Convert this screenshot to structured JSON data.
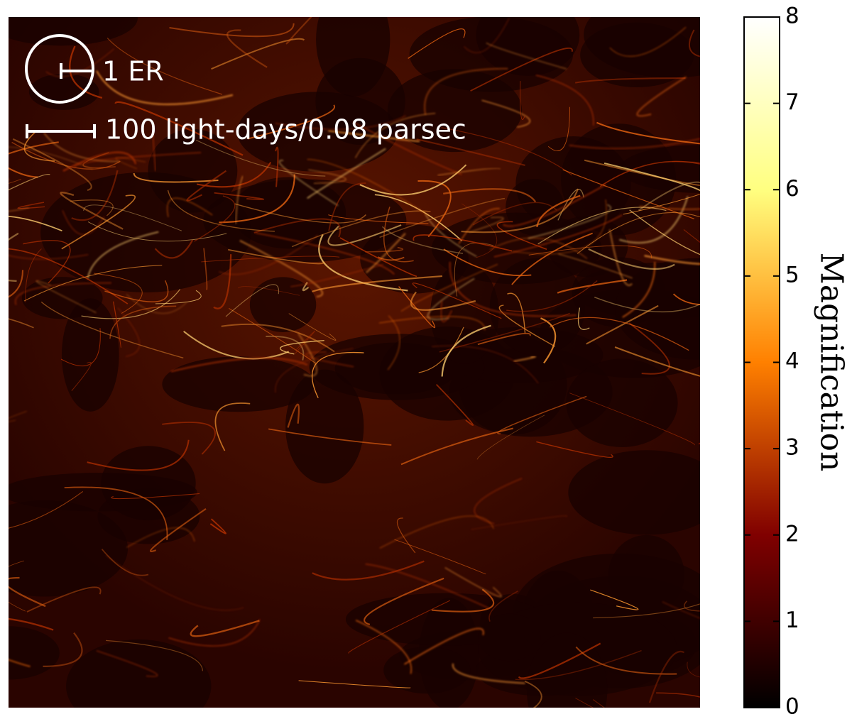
{
  "chart_data": {
    "type": "image",
    "annotations": [
      "1 ER",
      "100 light-days/0.08 parsec"
    ],
    "colorbar": {
      "label": "Magnification",
      "clim": [
        0,
        8
      ],
      "ticks": [
        0,
        1,
        2,
        3,
        4,
        5,
        6,
        7,
        8
      ],
      "colormap": [
        "#000000",
        "#800000",
        "#ff8000",
        "#ffff80",
        "#ffffff"
      ]
    }
  }
}
